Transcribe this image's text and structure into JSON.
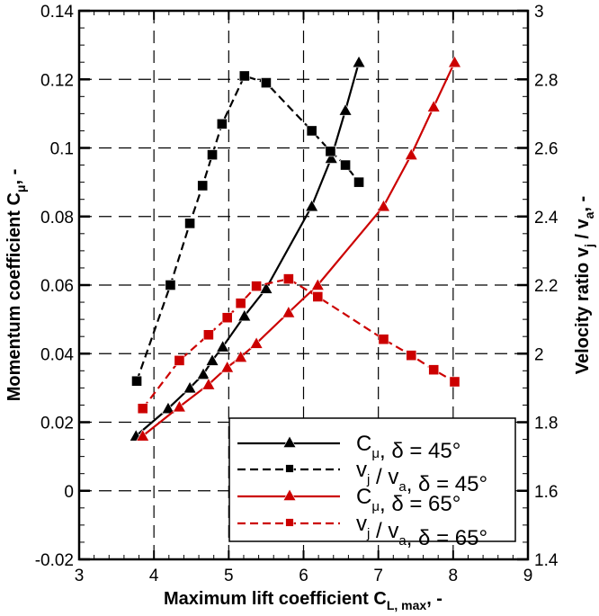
{
  "chart_data": {
    "type": "line",
    "xlabel": {
      "main": "Maximum lift coefficient  C",
      "sub": "L, max",
      "tail": ",   -"
    },
    "ylabel_left": {
      "main": "Momentum coefficient  C",
      "sub": "μ",
      "tail": ",   -"
    },
    "ylabel_right": {
      "main": "Velocity ratio  v",
      "sub": "j",
      "mid": " / v",
      "sub2": "a",
      "tail": ",   -"
    },
    "xlim": [
      3,
      9
    ],
    "ylim_left": [
      -0.02,
      0.14
    ],
    "ylim_right": [
      1.4,
      3
    ],
    "x_ticks": [
      "3",
      "4",
      "5",
      "6",
      "7",
      "8",
      "9"
    ],
    "y_left_ticks": [
      "-0.02",
      "0",
      "0.02",
      "0.04",
      "0.06",
      "0.08",
      "0.1",
      "0.12",
      "0.14"
    ],
    "y_right_ticks": [
      "1.4",
      "1.6",
      "1.8",
      "2",
      "2.2",
      "2.4",
      "2.6",
      "2.8",
      "3"
    ],
    "grid": true,
    "legend_position": "bottom-right",
    "series": [
      {
        "name": {
          "a": "C",
          "asub": "μ",
          "b": ",  δ = 45°"
        },
        "axis": "left",
        "color": "#000000",
        "dash": "solid",
        "marker": "triangle",
        "x": [
          3.76,
          4.19,
          4.48,
          4.66,
          4.78,
          4.92,
          5.21,
          5.5,
          6.11,
          6.37,
          6.56,
          6.74
        ],
        "y": [
          0.016,
          0.024,
          0.03,
          0.034,
          0.038,
          0.042,
          0.051,
          0.059,
          0.083,
          0.097,
          0.111,
          0.125
        ]
      },
      {
        "name": {
          "a": "v",
          "asub": "j",
          "b": " / v",
          "bsub": "a",
          "c": ",   δ = 45°"
        },
        "axis": "right",
        "color": "#000000",
        "dash": "dashed",
        "marker": "square",
        "x": [
          3.77,
          4.22,
          4.48,
          4.65,
          4.78,
          4.91,
          5.21,
          5.5,
          6.11,
          6.36,
          6.56,
          6.74
        ],
        "y": [
          1.92,
          2.2,
          2.38,
          2.49,
          2.58,
          2.67,
          2.81,
          2.79,
          2.65,
          2.59,
          2.55,
          2.5
        ]
      },
      {
        "name": {
          "a": "C",
          "asub": "μ",
          "b": ",  δ = 65°"
        },
        "axis": "left",
        "color": "#cc0000",
        "dash": "solid",
        "marker": "triangle",
        "x": [
          3.85,
          4.34,
          4.73,
          4.98,
          5.16,
          5.37,
          5.8,
          6.19,
          7.07,
          7.44,
          7.74,
          8.02
        ],
        "y": [
          0.016,
          0.0245,
          0.031,
          0.036,
          0.039,
          0.043,
          0.052,
          0.06,
          0.083,
          0.098,
          0.112,
          0.125
        ]
      },
      {
        "name": {
          "a": "v",
          "asub": "j",
          "b": " / v",
          "bsub": "a",
          "c": ",   δ = 65°"
        },
        "axis": "right",
        "color": "#cc0000",
        "dash": "dashed",
        "marker": "square",
        "x": [
          3.85,
          4.34,
          4.73,
          4.98,
          5.16,
          5.37,
          5.8,
          6.19,
          7.07,
          7.44,
          7.74,
          8.02
        ],
        "y": [
          1.84,
          1.98,
          2.055,
          2.105,
          2.147,
          2.197,
          2.218,
          2.166,
          2.042,
          1.995,
          1.953,
          1.918
        ]
      }
    ]
  }
}
